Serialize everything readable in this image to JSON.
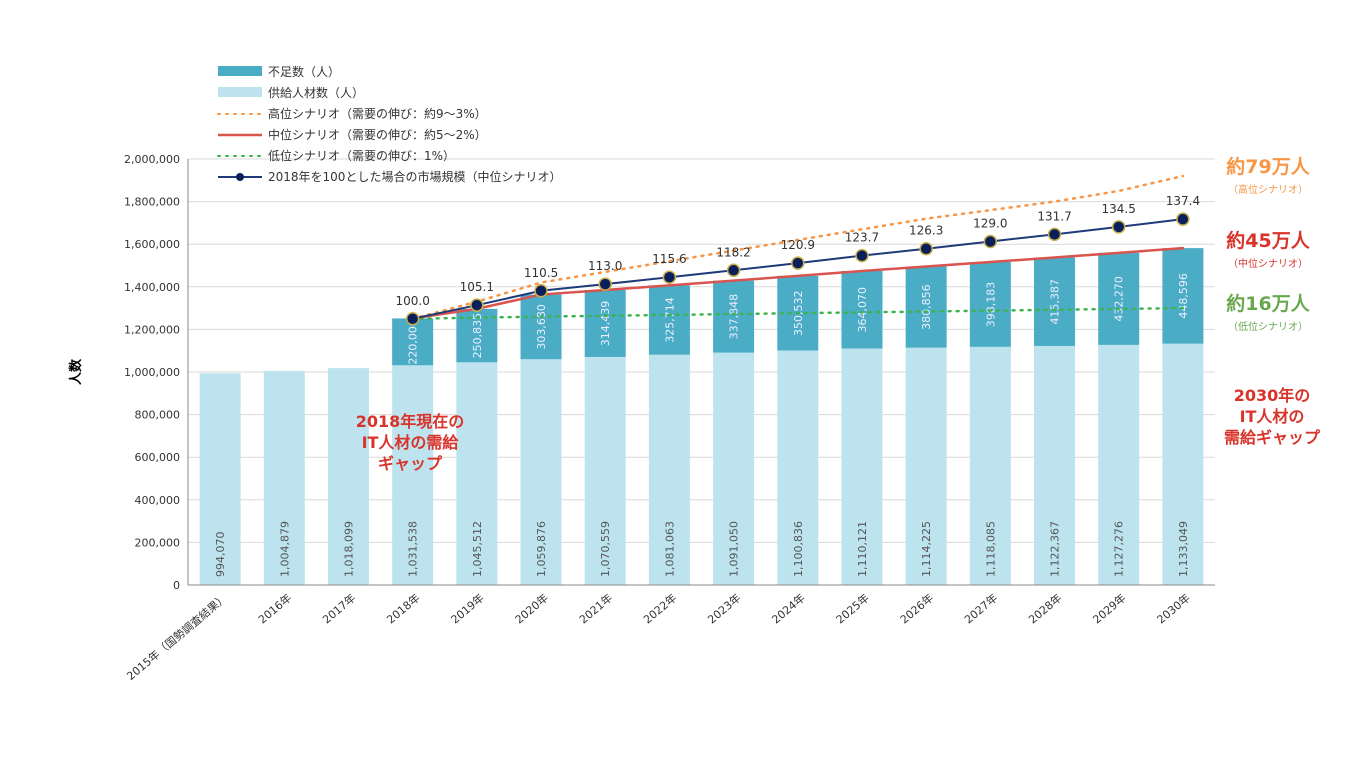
{
  "chart_data": {
    "type": "bar",
    "ylabel": "人数",
    "ylim": [
      0,
      2000000
    ],
    "yticks": [
      "0",
      "200,000",
      "400,000",
      "600,000",
      "800,000",
      "1,000,000",
      "1,200,000",
      "1,400,000",
      "1,600,000",
      "1,800,000",
      "2,000,000"
    ],
    "grid": true,
    "legend_position": "top-left",
    "categories": [
      "2015年（国勢調査結果）",
      "2016年",
      "2017年",
      "2018年",
      "2019年",
      "2020年",
      "2021年",
      "2022年",
      "2023年",
      "2024年",
      "2025年",
      "2026年",
      "2027年",
      "2028年",
      "2029年",
      "2030年"
    ],
    "series": [
      {
        "name": "不足数（人）",
        "kind": "bar-stack",
        "color": "#4bacc6",
        "values": [
          null,
          null,
          null,
          220000,
          250835,
          303680,
          314439,
          325714,
          337848,
          350532,
          364070,
          380856,
          398183,
          415387,
          432270,
          448596
        ],
        "labels": [
          "",
          "",
          "",
          "220,000",
          "250,835",
          "303,680",
          "314,439",
          "325,714",
          "337,848",
          "350,532",
          "364,070",
          "380,856",
          "398,183",
          "415,387",
          "432,270",
          "448,596"
        ]
      },
      {
        "name": "供給人材数（人）",
        "kind": "bar-base",
        "color": "#bde3ef",
        "values": [
          994070,
          1004879,
          1018099,
          1031538,
          1045512,
          1059876,
          1070559,
          1081063,
          1091050,
          1100836,
          1110121,
          1114225,
          1118085,
          1122367,
          1127276,
          1133049
        ],
        "labels": [
          "994,070",
          "1,004,879",
          "1,018,099",
          "1,031,538",
          "1,045,512",
          "1,059,876",
          "1,070,559",
          "1,081,063",
          "1,091,050",
          "1,100,836",
          "1,110,121",
          "1,114,225",
          "1,118,085",
          "1,122,367",
          "1,127,276",
          "1,133,049"
        ]
      },
      {
        "name": "高位シナリオ（需要の伸び：約9～3%）",
        "kind": "dotted-line",
        "color": "#f79646",
        "values": [
          null,
          null,
          null,
          1250000,
          1330000,
          1420000,
          1470000,
          1520000,
          1570000,
          1620000,
          1670000,
          1720000,
          1760000,
          1800000,
          1850000,
          1920000
        ]
      },
      {
        "name": "中位シナリオ（需要の伸び：約5～2%）",
        "kind": "line",
        "color": "#d9534f",
        "values": [
          null,
          null,
          null,
          1251538,
          1296347,
          1363556,
          1384998,
          1406777,
          1428898,
          1451368,
          1474191,
          1495081,
          1516268,
          1537754,
          1559546,
          1581645
        ]
      },
      {
        "name": "低位シナリオ（需要の伸び：1%）",
        "kind": "dotted-line",
        "color": "#3cb44b",
        "values": [
          null,
          null,
          null,
          1250000,
          1255000,
          1260000,
          1264000,
          1268000,
          1272000,
          1276000,
          1280000,
          1284000,
          1288000,
          1292000,
          1296000,
          1300000
        ]
      },
      {
        "name": "2018年を100とした場合の市場規模（中位シナリオ）",
        "kind": "line-marker",
        "color": "#1f3a7a",
        "values": [
          null,
          null,
          null,
          100.0,
          105.1,
          110.5,
          113.0,
          115.6,
          118.2,
          120.9,
          123.7,
          126.3,
          129.0,
          131.7,
          134.5,
          137.4
        ],
        "labels": [
          "",
          "",
          "",
          "100.0",
          "105.1",
          "110.5",
          "113.0",
          "115.6",
          "118.2",
          "120.9",
          "123.7",
          "126.3",
          "129.0",
          "131.7",
          "134.5",
          "137.4"
        ]
      }
    ],
    "annotations": {
      "gap_2018": [
        "2018年現在の",
        "IT人材の需給",
        "ギャップ"
      ],
      "gap_2030": [
        "2030年の",
        "IT人材の",
        "需給ギャップ"
      ],
      "high": {
        "value": "約79万人",
        "scenario": "（高位シナリオ）",
        "color": "#f79646"
      },
      "mid": {
        "value": "約45万人",
        "scenario": "（中位シナリオ）",
        "color": "#d9342b"
      },
      "low": {
        "value": "約16万人",
        "scenario": "（低位シナリオ）",
        "color": "#6aa84f"
      },
      "gap_color": "#d9342b"
    }
  }
}
